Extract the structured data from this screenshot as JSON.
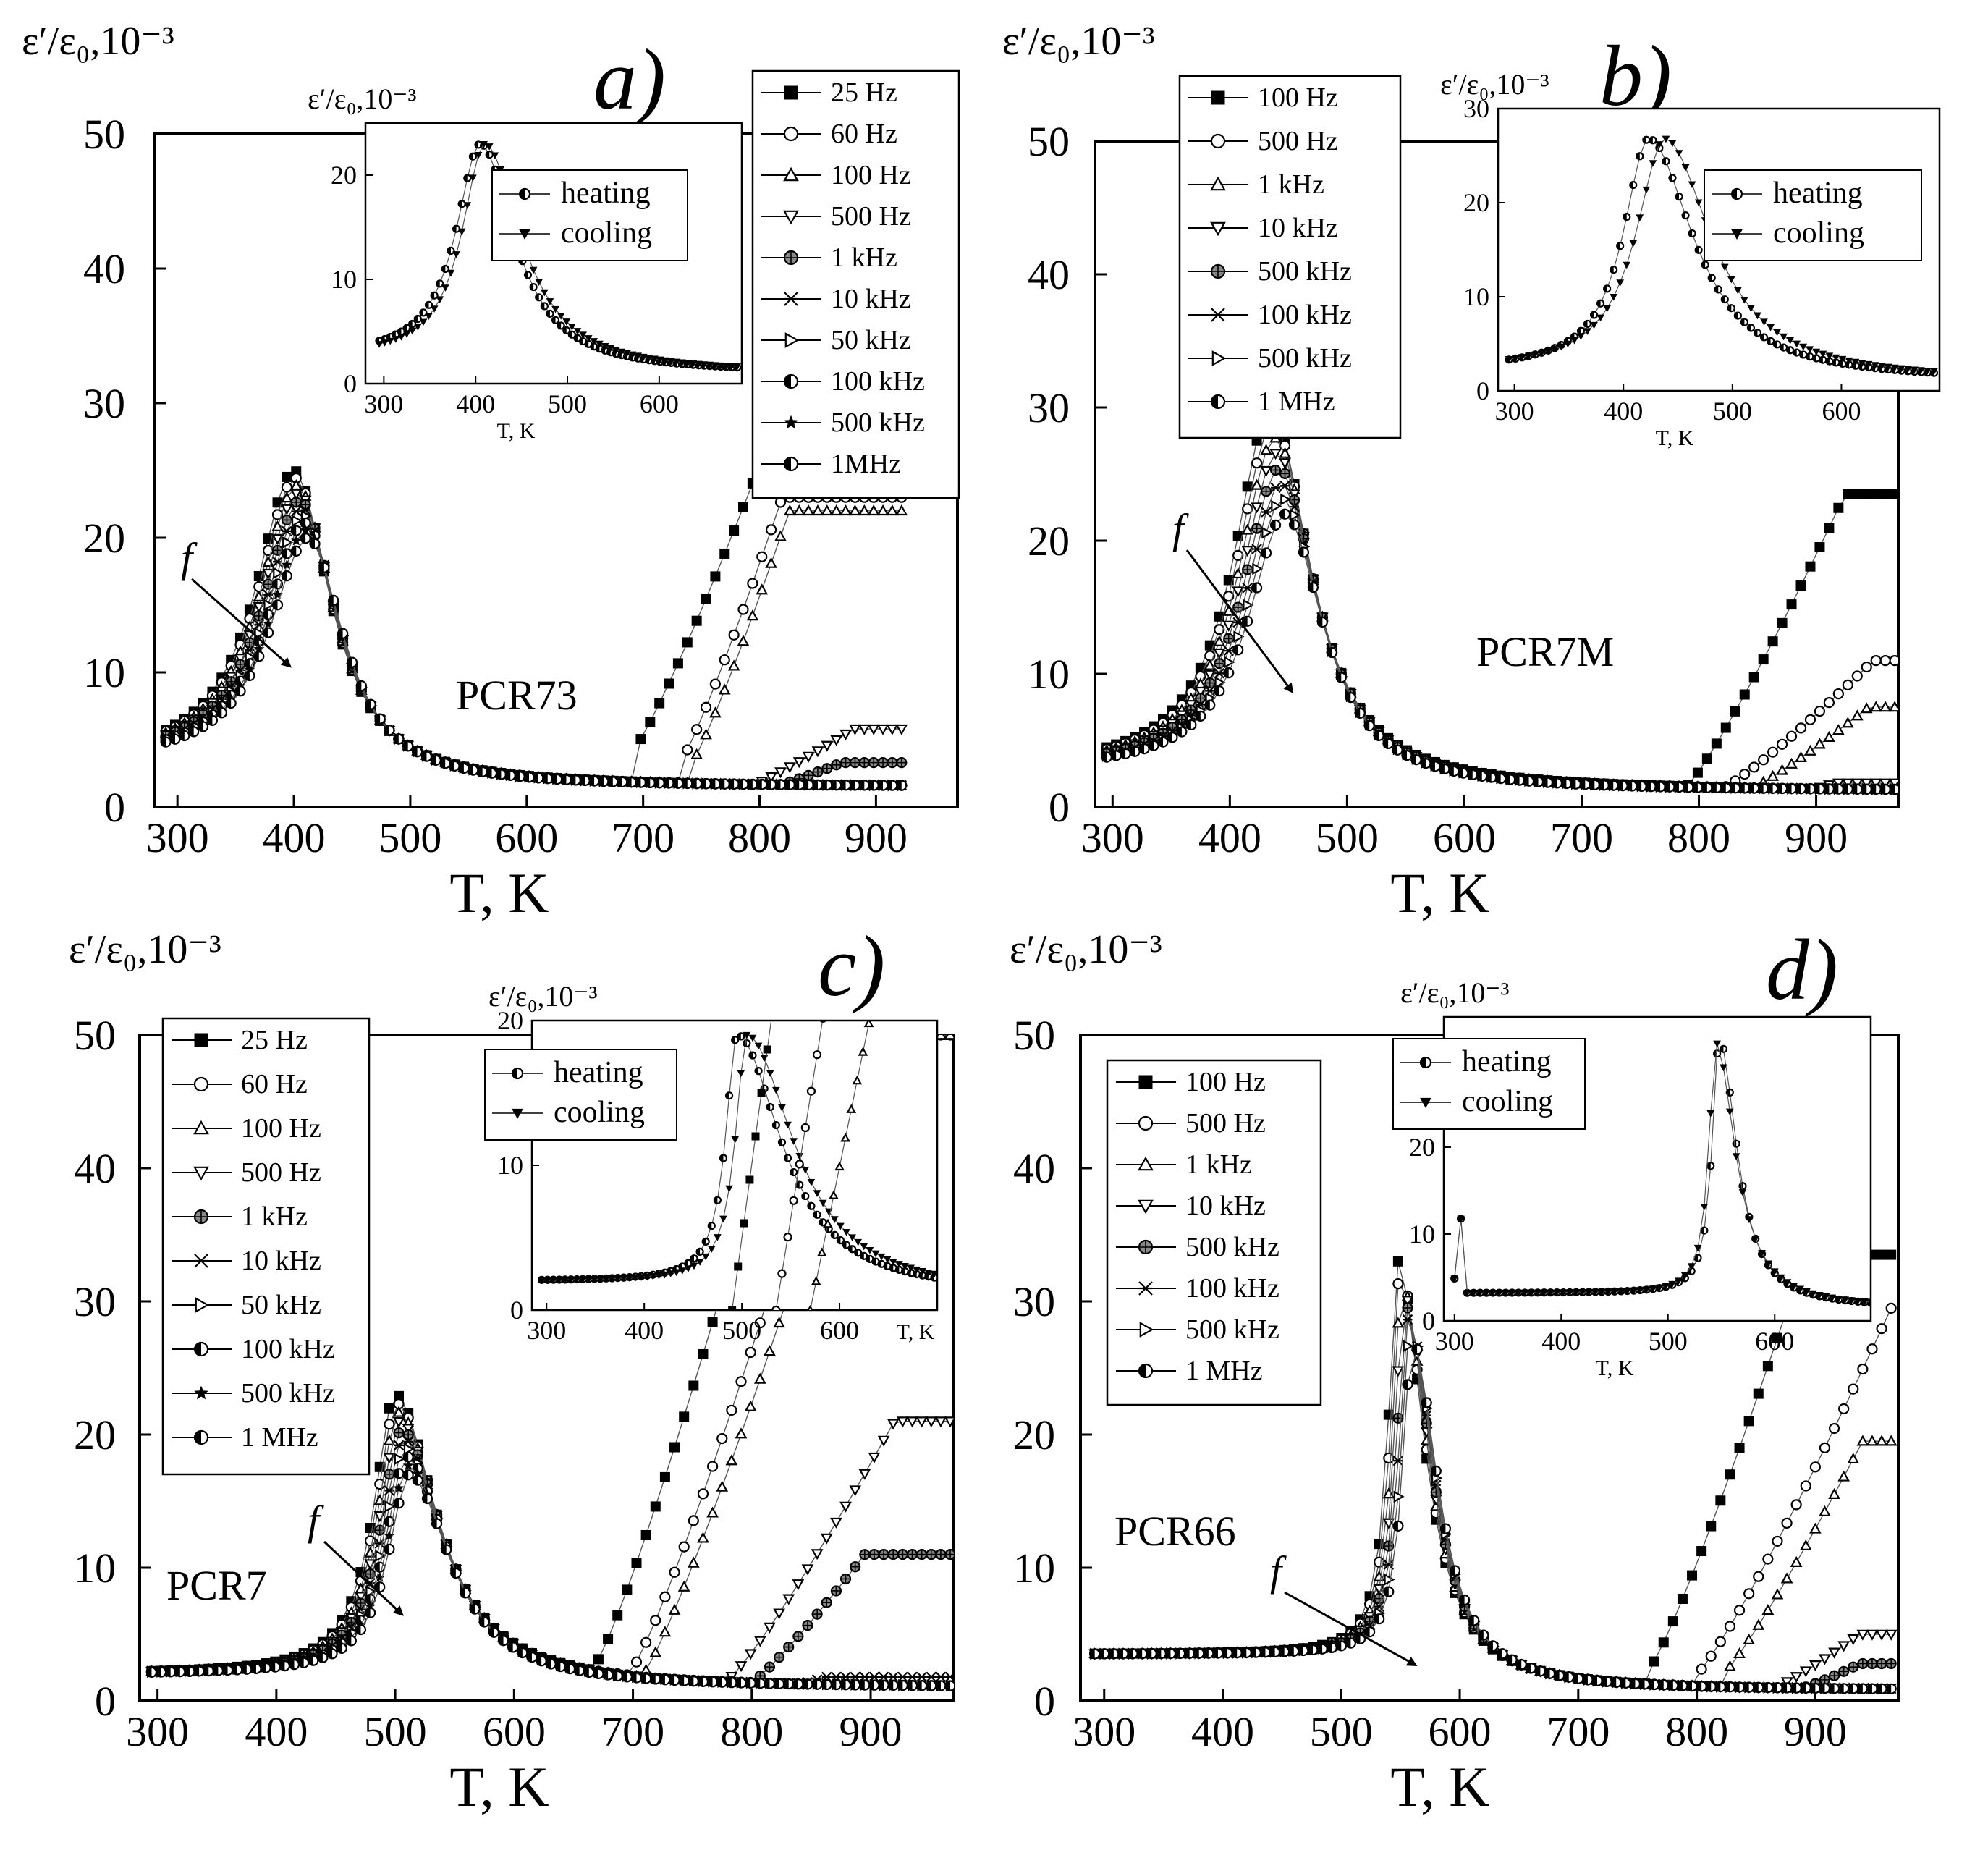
{
  "figure": {
    "panels": [
      "a",
      "b",
      "c",
      "d"
    ]
  },
  "chart_data": [
    {
      "panel": "a",
      "type": "scatter",
      "letter": "a)",
      "sample": "PCR73",
      "arrow_label": "f",
      "ylabel_main": "ε′/ε₀,10⁻³",
      "xlabel": "T, K",
      "xlim": [
        280,
        970
      ],
      "ylim": [
        0,
        50
      ],
      "xticks": [
        300,
        400,
        500,
        600,
        700,
        800,
        900
      ],
      "yticks": [
        0,
        10,
        20,
        30,
        40,
        50
      ],
      "legend": [
        "25 Hz",
        "60 Hz",
        "100 Hz",
        "500 Hz",
        "1 kHz",
        "10 kHz",
        "50 kHz",
        "100 kHz",
        "500 kHz",
        "1MHz"
      ],
      "markers": [
        "square-filled",
        "circle-open",
        "triangle-up-open",
        "triangle-down-open",
        "diamond-cross",
        "x-square",
        "triangle-right-open",
        "circle-half",
        "star",
        "circle-half"
      ],
      "peak_T": 400,
      "peak_max": 25,
      "peak_min": 20,
      "peak_width": 38,
      "peak_left_width": 40,
      "base_left": 3.2,
      "base_right": 1.5,
      "xmin": 290,
      "xmax": 925,
      "tails": [
        {
          "onset": 690,
          "rate": 0.16,
          "cap": 25,
          "start": 4
        },
        {
          "onset": 730,
          "rate": 0.19,
          "cap": 23,
          "start": 3
        },
        {
          "onset": 740,
          "rate": 0.19,
          "cap": 22,
          "start": 3
        },
        {
          "onset": 790,
          "rate": 0.04,
          "cap": 5.8,
          "start": 1.5
        },
        {
          "onset": 800,
          "rate": 0.026,
          "cap": 3.3,
          "start": 1.2
        }
      ],
      "inset": {
        "ylabel": "ε′/ε₀,10⁻³",
        "xlabel": "T, K",
        "xlim": [
          280,
          690
        ],
        "ylim": [
          0,
          25
        ],
        "xticks": [
          300,
          400,
          500,
          600
        ],
        "yticks": [
          0,
          10,
          20
        ],
        "legend": [
          "heating",
          "cooling"
        ],
        "heating": {
          "peak_T": 405,
          "peak": 23,
          "left_w": 32,
          "right_w": 45,
          "base_left": 2.5,
          "base_right": 1.0
        },
        "cooling": {
          "peak_T": 410,
          "peak": 23,
          "left_w": 30,
          "right_w": 48,
          "base_left": 2.5,
          "base_right": 1.0
        },
        "xmin": 295,
        "xmax": 690
      }
    },
    {
      "panel": "b",
      "type": "scatter",
      "letter": "b)",
      "sample": "PCR7M",
      "arrow_label": "f",
      "ylabel_main": "ε′/ε₀,10⁻³",
      "xlabel": "T, K",
      "xlim": [
        285,
        970
      ],
      "ylim": [
        0,
        50
      ],
      "xticks": [
        300,
        400,
        500,
        600,
        700,
        800,
        900
      ],
      "yticks": [
        0,
        10,
        20,
        30,
        40,
        50
      ],
      "legend": [
        "100 Hz",
        "500 Hz",
        "1 kHz",
        "10 kHz",
        "500 kHz",
        "100 kHz",
        "500 kHz",
        "1 MHz"
      ],
      "markers": [
        "square-filled",
        "circle-open",
        "triangle-up-open",
        "triangle-down-open",
        "diamond-cross",
        "x-square",
        "triangle-right-open",
        "circle-half"
      ],
      "peak_T": 435,
      "peak_max": 30,
      "peak_min": 22,
      "peak_width": 40,
      "peak_left_width": 38,
      "base_left": 2.6,
      "base_right": 1.2,
      "xmin": 295,
      "xmax": 968,
      "tails": [
        {
          "onset": 790,
          "rate": 0.13,
          "cap": 23.5,
          "start": 1.6
        },
        {
          "onset": 820,
          "rate": 0.06,
          "cap": 11,
          "start": 1.4
        },
        {
          "onset": 840,
          "rate": 0.05,
          "cap": 7.5,
          "start": 1.2
        },
        {
          "onset": 870,
          "rate": 0.02,
          "cap": 1.8,
          "start": 0.8
        }
      ],
      "inset": {
        "ylabel": "ε′/ε₀,10⁻³",
        "xlabel": "T, K",
        "xlim": [
          285,
          690
        ],
        "ylim": [
          0,
          30
        ],
        "xticks": [
          300,
          400,
          500,
          600
        ],
        "yticks": [
          0,
          10,
          20,
          30
        ],
        "legend": [
          "heating",
          "cooling"
        ],
        "heating": {
          "peak_T": 423,
          "peak": 26.8,
          "left_w": 28,
          "right_w": 50,
          "base_left": 2.2,
          "base_right": 1.0
        },
        "cooling": {
          "peak_T": 438,
          "peak": 26.8,
          "left_w": 32,
          "right_w": 52,
          "base_left": 2.2,
          "base_right": 1.0
        },
        "xmin": 295,
        "xmax": 690
      }
    },
    {
      "panel": "c",
      "type": "scatter",
      "letter": "c)",
      "sample": "PCR7",
      "arrow_label": "f",
      "ylabel_main": "ε′/ε₀,10⁻³",
      "xlabel": "T, K",
      "xlim": [
        285,
        970
      ],
      "ylim": [
        0,
        50
      ],
      "xticks": [
        300,
        400,
        500,
        600,
        700,
        800,
        900
      ],
      "yticks": [
        0,
        10,
        20,
        30,
        40,
        50
      ],
      "legend": [
        "25 Hz",
        "60 Hz",
        "100 Hz",
        "500 Hz",
        "1 kHz",
        "10 kHz",
        "50 kHz",
        "100 kHz",
        "500 kHz",
        "1 MHz"
      ],
      "markers": [
        "square-filled",
        "circle-open",
        "triangle-up-open",
        "triangle-down-open",
        "diamond-cross",
        "x-square",
        "triangle-right-open",
        "circle-half",
        "star",
        "circle-half"
      ],
      "peak_T": 500,
      "peak_max": 23,
      "peak_min": 17,
      "peak_width": 42,
      "peak_left_width": 22,
      "base_left": 2.0,
      "base_right": 1.0,
      "xmin": 295,
      "xmax": 968,
      "tails": [
        {
          "onset": 670,
          "rate": 0.22,
          "cap": 50,
          "start": 3
        },
        {
          "onset": 700,
          "rate": 0.2,
          "cap": 50,
          "start": 2.5
        },
        {
          "onset": 710,
          "rate": 0.19,
          "cap": 50,
          "start": 2.2
        },
        {
          "onset": 780,
          "rate": 0.11,
          "cap": 21,
          "start": 1.6
        },
        {
          "onset": 800,
          "rate": 0.085,
          "cap": 11,
          "start": 1.4
        },
        {
          "onset": 830,
          "rate": 0.025,
          "cap": 1.8,
          "start": 1.0
        }
      ],
      "inset": {
        "ylabel": "ε′/ε₀,10⁻³",
        "xlabel": "T, K",
        "xlim": [
          285,
          700
        ],
        "ylim": [
          0,
          20
        ],
        "xticks": [
          300,
          400,
          500,
          600
        ],
        "yticks": [
          0,
          10,
          20
        ],
        "legend": [
          "heating",
          "cooling"
        ],
        "heating": {
          "peak_T": 495,
          "peak": 19,
          "left_w": 14,
          "right_w": 55,
          "base_left": 2.0,
          "base_right": 1.0
        },
        "cooling": {
          "peak_T": 505,
          "peak": 19,
          "left_w": 14,
          "right_w": 58,
          "base_left": 2.0,
          "base_right": 1.0
        },
        "xmin": 295,
        "xmax": 700,
        "steep": [
          {
            "x0": 490,
            "slope": 0.5,
            "marker": "square-filled"
          },
          {
            "x0": 535,
            "slope": 0.42,
            "marker": "circle-open"
          },
          {
            "x0": 570,
            "slope": 0.33,
            "marker": "triangle-up-open"
          }
        ]
      }
    },
    {
      "panel": "d",
      "type": "scatter",
      "letter": "d)",
      "sample": "PCR66",
      "arrow_label": "f",
      "ylabel_main": "ε′/ε₀,10⁻³",
      "xlabel": "T, K",
      "xlim": [
        280,
        970
      ],
      "ylim": [
        0,
        50
      ],
      "xticks": [
        300,
        400,
        500,
        600,
        700,
        800,
        900
      ],
      "yticks": [
        0,
        10,
        20,
        30,
        40,
        50
      ],
      "legend": [
        "100 Hz",
        "500 Hz",
        "1 kHz",
        "10 kHz",
        "500 kHz",
        "100 kHz",
        "500 kHz",
        "1 MHz"
      ],
      "markers": [
        "square-filled",
        "circle-open",
        "triangle-up-open",
        "triangle-down-open",
        "diamond-cross",
        "x-square",
        "triangle-right-open",
        "circle-half"
      ],
      "peak_T": 548,
      "peak_max": 33,
      "peak_min": 27,
      "peak_width": 26,
      "peak_left_width": 10,
      "base_left": 3.5,
      "base_right": 0.8,
      "xmin": 292,
      "xmax": 968,
      "tails": [
        {
          "onset": 760,
          "rate": 0.19,
          "cap": 33.5,
          "start": 2.4
        },
        {
          "onset": 800,
          "rate": 0.13,
          "cap": 30,
          "start": 2.0
        },
        {
          "onset": 820,
          "rate": 0.12,
          "cap": 19.5,
          "start": 1.8
        },
        {
          "onset": 870,
          "rate": 0.05,
          "cap": 5,
          "start": 1.2
        },
        {
          "onset": 890,
          "rate": 0.035,
          "cap": 2.8,
          "start": 1.0
        }
      ],
      "inset": {
        "ylabel": "ε′/ε₀,10⁻³",
        "xlabel": "T, K",
        "xlim": [
          290,
          690
        ],
        "ylim": [
          0,
          35
        ],
        "xticks": [
          300,
          400,
          500,
          600
        ],
        "xtick_labels": [
          "300",
          "400",
          "500",
          "600"
        ],
        "yticks": [
          0,
          10,
          20,
          30
        ],
        "legend": [
          "heating",
          "cooling"
        ],
        "heating": {
          "peak_T": 548,
          "peak": 32.5,
          "left_w": 8,
          "right_w": 20,
          "base_left": 3.2,
          "base_right": 1.5
        },
        "cooling": {
          "peak_T": 545,
          "peak": 32,
          "left_w": 8,
          "right_w": 22,
          "base_left": 3.2,
          "base_right": 1.5
        },
        "xmin": 300,
        "xmax": 690,
        "spike": {
          "T": 305,
          "peak": 12.5,
          "width": 4
        }
      }
    }
  ]
}
